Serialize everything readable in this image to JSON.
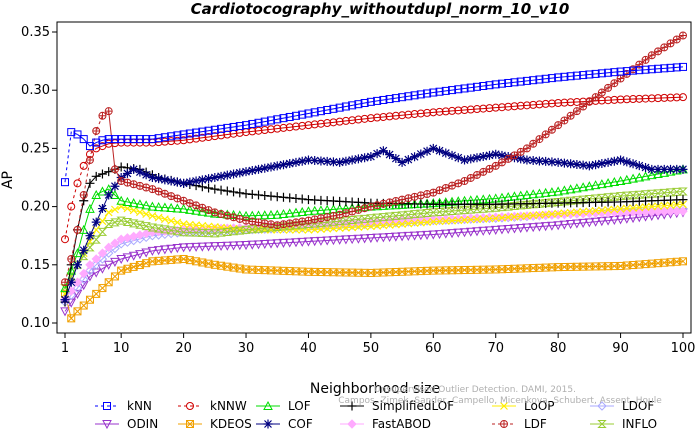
{
  "chart_data": {
    "type": "line",
    "title": "Cardiotocography_withoutdupl_norm_10_v10",
    "xlabel": "Neighborhood size",
    "ylabel": "AP",
    "xlim": [
      1,
      100
    ],
    "ylim": [
      0.1,
      0.35
    ],
    "xticks": [
      1,
      10,
      20,
      30,
      40,
      50,
      60,
      70,
      80,
      90,
      100
    ],
    "yticks": [
      0.1,
      0.15,
      0.2,
      0.25,
      0.3,
      0.35
    ],
    "grid": false,
    "legend_position": "bottom",
    "watermark": [
      "Campos, Zimek, Sander, Campello, Micenkova, Schubert, Assent, Houle",
      "Unsupervised Outlier Detection. DAMI, 2015."
    ],
    "series": [
      {
        "name": "kNN",
        "color": "#0000ff",
        "marker": "square",
        "dashed_until": 3,
        "points": [
          [
            1,
            0.221
          ],
          [
            2,
            0.264
          ],
          [
            3,
            0.262
          ],
          [
            4,
            0.258
          ],
          [
            5,
            0.252
          ],
          [
            6,
            0.255
          ],
          [
            7,
            0.257
          ],
          [
            8,
            0.258
          ],
          [
            9,
            0.258
          ],
          [
            10,
            0.258
          ],
          [
            15,
            0.258
          ],
          [
            20,
            0.262
          ],
          [
            30,
            0.27
          ],
          [
            40,
            0.28
          ],
          [
            50,
            0.29
          ],
          [
            60,
            0.298
          ],
          [
            70,
            0.305
          ],
          [
            80,
            0.311
          ],
          [
            90,
            0.316
          ],
          [
            100,
            0.32
          ]
        ]
      },
      {
        "name": "kNNW",
        "color": "#d00000",
        "marker": "circle",
        "dashed_until": 6,
        "points": [
          [
            1,
            0.172
          ],
          [
            2,
            0.2
          ],
          [
            3,
            0.22
          ],
          [
            4,
            0.235
          ],
          [
            5,
            0.245
          ],
          [
            6,
            0.25
          ],
          [
            7,
            0.252
          ],
          [
            8,
            0.254
          ],
          [
            10,
            0.255
          ],
          [
            15,
            0.255
          ],
          [
            20,
            0.257
          ],
          [
            30,
            0.264
          ],
          [
            40,
            0.27
          ],
          [
            50,
            0.276
          ],
          [
            60,
            0.281
          ],
          [
            70,
            0.285
          ],
          [
            80,
            0.289
          ],
          [
            90,
            0.292
          ],
          [
            100,
            0.294
          ]
        ]
      },
      {
        "name": "LOF",
        "color": "#00dd00",
        "marker": "triangle-up",
        "points": [
          [
            1,
            0.13
          ],
          [
            2,
            0.145
          ],
          [
            3,
            0.16
          ],
          [
            4,
            0.18
          ],
          [
            5,
            0.198
          ],
          [
            6,
            0.21
          ],
          [
            7,
            0.213
          ],
          [
            8,
            0.215
          ],
          [
            10,
            0.205
          ],
          [
            15,
            0.2
          ],
          [
            20,
            0.198
          ],
          [
            25,
            0.194
          ],
          [
            30,
            0.192
          ],
          [
            35,
            0.193
          ],
          [
            40,
            0.196
          ],
          [
            50,
            0.2
          ],
          [
            60,
            0.203
          ],
          [
            70,
            0.207
          ],
          [
            80,
            0.213
          ],
          [
            90,
            0.222
          ],
          [
            100,
            0.232
          ]
        ]
      },
      {
        "name": "SimplifiedLOF",
        "color": "#000000",
        "marker": "plus",
        "points": [
          [
            1,
            0.118
          ],
          [
            2,
            0.15
          ],
          [
            3,
            0.18
          ],
          [
            4,
            0.205
          ],
          [
            5,
            0.22
          ],
          [
            6,
            0.226
          ],
          [
            7,
            0.228
          ],
          [
            8,
            0.23
          ],
          [
            10,
            0.234
          ],
          [
            13,
            0.232
          ],
          [
            16,
            0.225
          ],
          [
            20,
            0.22
          ],
          [
            25,
            0.215
          ],
          [
            30,
            0.211
          ],
          [
            40,
            0.206
          ],
          [
            50,
            0.203
          ],
          [
            60,
            0.202
          ],
          [
            70,
            0.202
          ],
          [
            80,
            0.203
          ],
          [
            90,
            0.204
          ],
          [
            100,
            0.206
          ]
        ]
      },
      {
        "name": "LoOP",
        "color": "#ffee00",
        "marker": "x",
        "points": [
          [
            1,
            0.125
          ],
          [
            2,
            0.14
          ],
          [
            4,
            0.16
          ],
          [
            6,
            0.18
          ],
          [
            8,
            0.195
          ],
          [
            10,
            0.2
          ],
          [
            15,
            0.192
          ],
          [
            20,
            0.185
          ],
          [
            30,
            0.18
          ],
          [
            40,
            0.18
          ],
          [
            50,
            0.183
          ],
          [
            60,
            0.187
          ],
          [
            70,
            0.19
          ],
          [
            80,
            0.194
          ],
          [
            90,
            0.198
          ],
          [
            100,
            0.202
          ]
        ]
      },
      {
        "name": "LDOF",
        "color": "#aaaaff",
        "marker": "diamond",
        "points": [
          [
            1,
            0.118
          ],
          [
            3,
            0.13
          ],
          [
            5,
            0.145
          ],
          [
            8,
            0.16
          ],
          [
            10,
            0.168
          ],
          [
            15,
            0.175
          ],
          [
            20,
            0.178
          ],
          [
            30,
            0.18
          ],
          [
            40,
            0.182
          ],
          [
            50,
            0.185
          ],
          [
            60,
            0.188
          ],
          [
            70,
            0.19
          ],
          [
            80,
            0.193
          ],
          [
            90,
            0.196
          ],
          [
            100,
            0.198
          ]
        ]
      },
      {
        "name": "ODIN",
        "color": "#9933cc",
        "marker": "triangle-down",
        "points": [
          [
            1,
            0.11
          ],
          [
            3,
            0.125
          ],
          [
            5,
            0.14
          ],
          [
            8,
            0.15
          ],
          [
            10,
            0.155
          ],
          [
            15,
            0.162
          ],
          [
            20,
            0.165
          ],
          [
            30,
            0.167
          ],
          [
            40,
            0.17
          ],
          [
            50,
            0.173
          ],
          [
            60,
            0.176
          ],
          [
            70,
            0.18
          ],
          [
            80,
            0.184
          ],
          [
            90,
            0.189
          ],
          [
            100,
            0.195
          ]
        ]
      },
      {
        "name": "KDEOS",
        "color": "#f0a000",
        "marker": "square-x",
        "points": [
          [
            1,
            0.125
          ],
          [
            2,
            0.104
          ],
          [
            3,
            0.11
          ],
          [
            5,
            0.12
          ],
          [
            7,
            0.13
          ],
          [
            10,
            0.145
          ],
          [
            15,
            0.153
          ],
          [
            20,
            0.155
          ],
          [
            25,
            0.15
          ],
          [
            30,
            0.146
          ],
          [
            40,
            0.144
          ],
          [
            50,
            0.143
          ],
          [
            60,
            0.145
          ],
          [
            70,
            0.146
          ],
          [
            80,
            0.148
          ],
          [
            90,
            0.149
          ],
          [
            100,
            0.153
          ]
        ]
      },
      {
        "name": "COF",
        "color": "#000080",
        "marker": "star",
        "points": [
          [
            1,
            0.12
          ],
          [
            3,
            0.15
          ],
          [
            5,
            0.175
          ],
          [
            8,
            0.21
          ],
          [
            10,
            0.225
          ],
          [
            12,
            0.232
          ],
          [
            15,
            0.225
          ],
          [
            20,
            0.22
          ],
          [
            25,
            0.225
          ],
          [
            30,
            0.23
          ],
          [
            35,
            0.235
          ],
          [
            40,
            0.24
          ],
          [
            45,
            0.238
          ],
          [
            50,
            0.243
          ],
          [
            52,
            0.248
          ],
          [
            55,
            0.238
          ],
          [
            60,
            0.25
          ],
          [
            65,
            0.24
          ],
          [
            70,
            0.245
          ],
          [
            75,
            0.24
          ],
          [
            80,
            0.238
          ],
          [
            85,
            0.235
          ],
          [
            90,
            0.24
          ],
          [
            95,
            0.232
          ],
          [
            100,
            0.232
          ]
        ]
      },
      {
        "name": "FastABOD",
        "color": "#ffaaff",
        "marker": "diamond-filled",
        "points": [
          [
            1,
            0.12
          ],
          [
            3,
            0.135
          ],
          [
            5,
            0.15
          ],
          [
            8,
            0.165
          ],
          [
            10,
            0.172
          ],
          [
            15,
            0.178
          ],
          [
            20,
            0.18
          ],
          [
            30,
            0.182
          ],
          [
            40,
            0.185
          ],
          [
            50,
            0.187
          ],
          [
            60,
            0.189
          ],
          [
            70,
            0.191
          ],
          [
            80,
            0.193
          ],
          [
            90,
            0.195
          ],
          [
            100,
            0.196
          ]
        ]
      },
      {
        "name": "LDF",
        "color": "#bb2222",
        "marker": "circle-plus",
        "dashed_until": 8,
        "points": [
          [
            1,
            0.135
          ],
          [
            2,
            0.155
          ],
          [
            3,
            0.18
          ],
          [
            4,
            0.21
          ],
          [
            5,
            0.24
          ],
          [
            6,
            0.265
          ],
          [
            7,
            0.278
          ],
          [
            8,
            0.282
          ],
          [
            9,
            0.232
          ],
          [
            10,
            0.222
          ],
          [
            15,
            0.215
          ],
          [
            20,
            0.205
          ],
          [
            25,
            0.195
          ],
          [
            30,
            0.188
          ],
          [
            35,
            0.184
          ],
          [
            40,
            0.188
          ],
          [
            45,
            0.193
          ],
          [
            50,
            0.2
          ],
          [
            55,
            0.206
          ],
          [
            60,
            0.212
          ],
          [
            65,
            0.222
          ],
          [
            70,
            0.235
          ],
          [
            75,
            0.25
          ],
          [
            80,
            0.27
          ],
          [
            85,
            0.29
          ],
          [
            90,
            0.31
          ],
          [
            95,
            0.33
          ],
          [
            100,
            0.347
          ]
        ]
      },
      {
        "name": "INFLO",
        "color": "#99cc33",
        "marker": "hourglass",
        "points": [
          [
            1,
            0.13
          ],
          [
            3,
            0.15
          ],
          [
            5,
            0.165
          ],
          [
            8,
            0.185
          ],
          [
            10,
            0.188
          ],
          [
            15,
            0.182
          ],
          [
            20,
            0.178
          ],
          [
            25,
            0.177
          ],
          [
            30,
            0.18
          ],
          [
            40,
            0.185
          ],
          [
            50,
            0.19
          ],
          [
            60,
            0.195
          ],
          [
            70,
            0.199
          ],
          [
            80,
            0.204
          ],
          [
            90,
            0.209
          ],
          [
            100,
            0.213
          ]
        ]
      }
    ]
  }
}
